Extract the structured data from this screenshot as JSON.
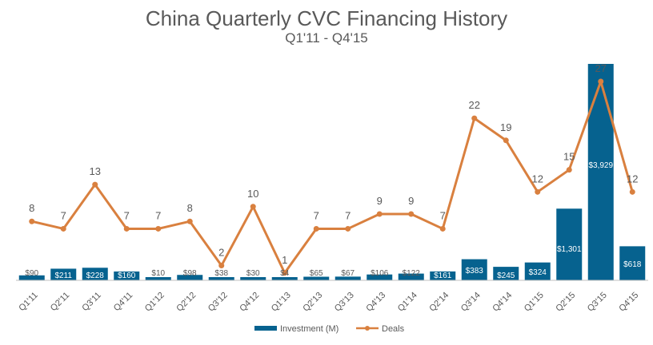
{
  "chart_data": {
    "type": "bar",
    "title": "China Quarterly CVC Financing History",
    "subtitle": "Q1'11 - Q4'15",
    "categories": [
      "Q1'11",
      "Q2'11",
      "Q3'11",
      "Q4'11",
      "Q1'12",
      "Q2'12",
      "Q3'12",
      "Q4'12",
      "Q1'13",
      "Q2'13",
      "Q3'13",
      "Q4'13",
      "Q1'14",
      "Q2'14",
      "Q3'14",
      "Q4'14",
      "Q1'15",
      "Q2'15",
      "Q3'15",
      "Q4'15"
    ],
    "series": [
      {
        "name": "Investment (M)",
        "type": "bar",
        "values": [
          90,
          211,
          228,
          160,
          10,
          98,
          38,
          30,
          4,
          65,
          67,
          106,
          122,
          161,
          383,
          245,
          324,
          1301,
          3929,
          618
        ],
        "labels": [
          "$90",
          "$211",
          "$228",
          "$160",
          "$10",
          "$98",
          "$38",
          "$30",
          "$4",
          "$65",
          "$67",
          "$106",
          "$122",
          "$161",
          "$383",
          "$245",
          "$324",
          "$1,301",
          "$3,929",
          "$618"
        ],
        "color": "#06628F"
      },
      {
        "name": "Deals",
        "type": "line",
        "values": [
          8,
          7,
          13,
          7,
          7,
          8,
          2,
          10,
          1,
          7,
          7,
          9,
          9,
          7,
          22,
          19,
          12,
          15,
          27,
          12
        ],
        "color": "#D9803F"
      }
    ],
    "y_left_range": [
      0,
      4500
    ],
    "y_right_range": [
      0,
      30
    ],
    "grid": false,
    "legend_position": "bottom"
  }
}
